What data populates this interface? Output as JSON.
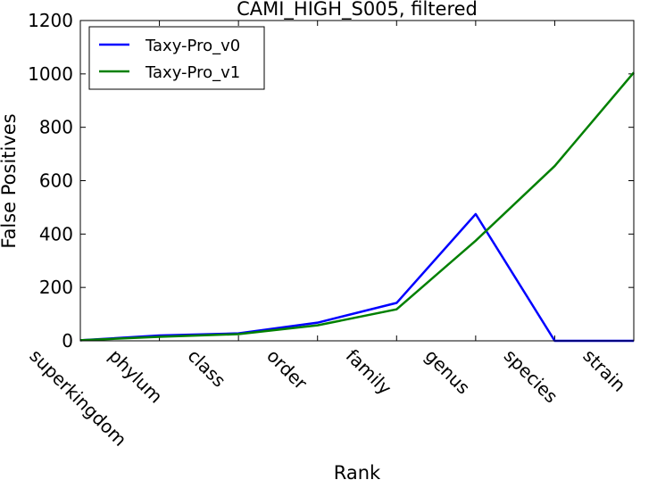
{
  "chart_data": {
    "type": "line",
    "title": "CAMI_HIGH_S005, filtered",
    "xlabel": "Rank",
    "ylabel": "False Positives",
    "categories": [
      "superkingdom",
      "phylum",
      "class",
      "order",
      "family",
      "genus",
      "species",
      "strain"
    ],
    "ylim": [
      0,
      1200
    ],
    "yticks": [
      "0",
      "200",
      "400",
      "600",
      "800",
      "1000",
      "1200"
    ],
    "grid": false,
    "legend_position": "top-left",
    "series": [
      {
        "name": "Taxy-Pro_v0",
        "color": "#0000ff",
        "values": [
          2,
          20,
          28,
          68,
          142,
          475,
          0,
          0
        ]
      },
      {
        "name": "Taxy-Pro_v1",
        "color": "#008000",
        "values": [
          2,
          15,
          25,
          58,
          118,
          375,
          655,
          1005
        ]
      }
    ]
  }
}
